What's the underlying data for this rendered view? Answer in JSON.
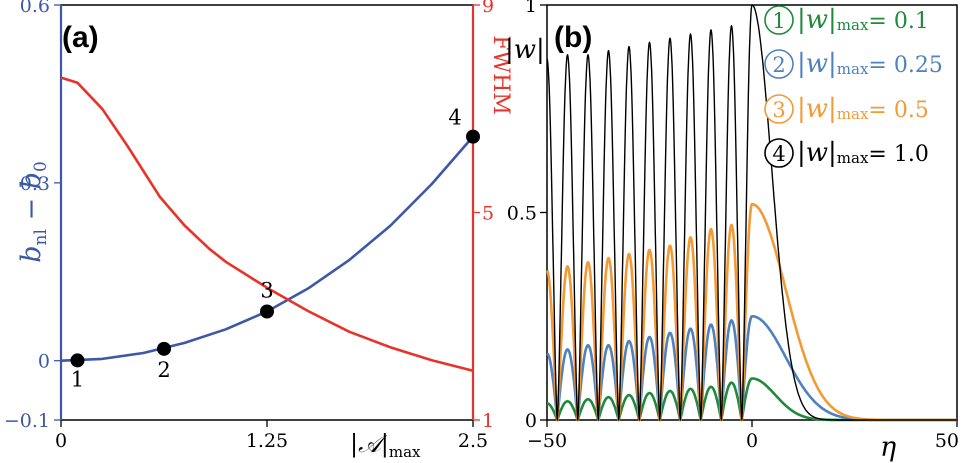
{
  "colors": {
    "blue": "#3c58a6",
    "red": "#e8332a",
    "green": "#1f8a3c",
    "lightblue": "#4f81bd",
    "orange": "#f39a35",
    "black": "#000000"
  },
  "chart_data": [
    {
      "type": "line",
      "panel_label": "(a)",
      "xlabel": "|𝒜|",
      "xlabel_sub": "max",
      "ylabel_left": "b",
      "ylabel_left_sub": "nl",
      "ylabel_left_rest": " − b",
      "ylabel_left_sub2": "0",
      "ylabel_right": "FWHM",
      "xlim": [
        0,
        2.5
      ],
      "ylim_left": [
        -0.1,
        0.6
      ],
      "ylim_right": [
        1,
        9
      ],
      "x_ticks": [
        "0",
        "1.25",
        "2.5"
      ],
      "y_left_ticks": [
        "−0.1",
        "0",
        "0.3",
        "0.6"
      ],
      "y_right_ticks": [
        "1",
        "5",
        "9"
      ],
      "series": [
        {
          "axis": "left",
          "color": "blue",
          "x": [
            0,
            0.25,
            0.5,
            0.75,
            1.0,
            1.25,
            1.5,
            1.75,
            2.0,
            2.25,
            2.5
          ],
          "y": [
            0,
            0.003,
            0.013,
            0.03,
            0.053,
            0.083,
            0.122,
            0.17,
            0.228,
            0.298,
            0.378
          ]
        },
        {
          "axis": "right",
          "color": "red",
          "x": [
            0,
            0.1,
            0.25,
            0.4,
            0.5,
            0.6,
            0.75,
            0.9,
            1.0,
            1.25,
            1.5,
            1.75,
            2.0,
            2.25,
            2.5
          ],
          "y": [
            7.6,
            7.5,
            7.0,
            6.3,
            5.8,
            5.3,
            4.75,
            4.3,
            4.05,
            3.55,
            3.1,
            2.7,
            2.4,
            2.15,
            1.95
          ]
        }
      ],
      "points": [
        {
          "label": "1",
          "x": 0.1,
          "y": 0.0005
        },
        {
          "label": "2",
          "x": 0.625,
          "y": 0.02
        },
        {
          "label": "3",
          "x": 1.25,
          "y": 0.083
        },
        {
          "label": "4",
          "x": 2.5,
          "y": 0.378
        }
      ]
    },
    {
      "type": "line",
      "panel_label": "(b)",
      "xlabel": "η",
      "ylabel": "|w|",
      "xlim": [
        -50,
        50
      ],
      "ylim": [
        0,
        1
      ],
      "x_ticks": [
        "−50",
        "0",
        "50"
      ],
      "y_ticks": [
        "0",
        "0.5",
        "1"
      ],
      "peak_positions": [
        -50,
        -45,
        -40,
        -35,
        -30,
        -25,
        -20,
        -15,
        -10,
        -5,
        0
      ],
      "series": [
        {
          "marker": "1",
          "label": "|w|",
          "label_sub": "max",
          "label_value": "= 0.1",
          "color": "green",
          "peaks": [
            0.04,
            0.045,
            0.05,
            0.055,
            0.06,
            0.065,
            0.07,
            0.075,
            0.08,
            0.09,
            0.1
          ],
          "tail": 0.1
        },
        {
          "marker": "2",
          "label": "|w|",
          "label_sub": "max",
          "label_value": "= 0.25",
          "color": "lightblue",
          "peaks": [
            0.16,
            0.17,
            0.18,
            0.18,
            0.19,
            0.2,
            0.21,
            0.22,
            0.23,
            0.24,
            0.25
          ],
          "tail": 0.16
        },
        {
          "marker": "3",
          "label": "|w|",
          "label_sub": "max",
          "label_value": "= 0.5",
          "color": "orange",
          "peaks": [
            0.36,
            0.37,
            0.38,
            0.39,
            0.4,
            0.41,
            0.42,
            0.44,
            0.46,
            0.47,
            0.52
          ],
          "tail": 0.16
        },
        {
          "marker": "4",
          "label": "|w|",
          "label_sub": "max",
          "label_value": "= 1.0",
          "color": "black",
          "peaks": [
            0.87,
            0.88,
            0.88,
            0.89,
            0.9,
            0.91,
            0.92,
            0.93,
            0.94,
            0.95,
            1.0
          ],
          "tail": 0.08
        }
      ]
    }
  ]
}
